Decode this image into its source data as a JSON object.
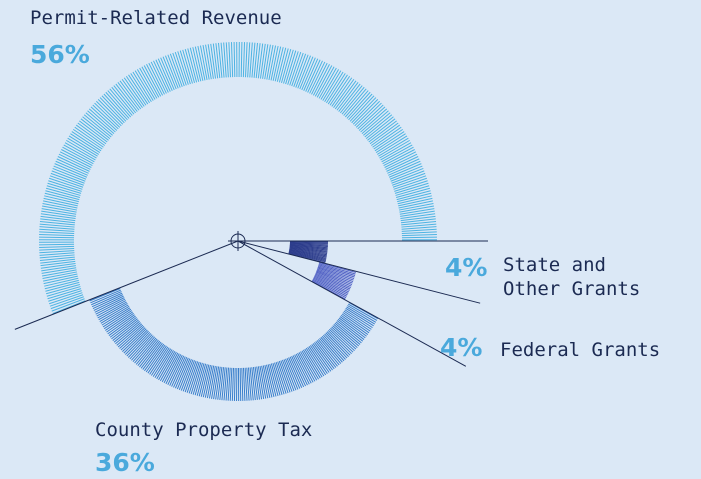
{
  "chart_data": {
    "type": "radial-hatch",
    "categories": [
      "Permit-Related Revenue",
      "County Property Tax",
      "Federal Grants",
      "State and Other Grants"
    ],
    "values": [
      56,
      36,
      4,
      4
    ],
    "value_labels": [
      "56%",
      "36%",
      "4%",
      "4%"
    ],
    "colors": [
      "#4db3e2",
      "#3a7fcb",
      "#4f5fc4",
      "#2d3d8c"
    ]
  }
}
